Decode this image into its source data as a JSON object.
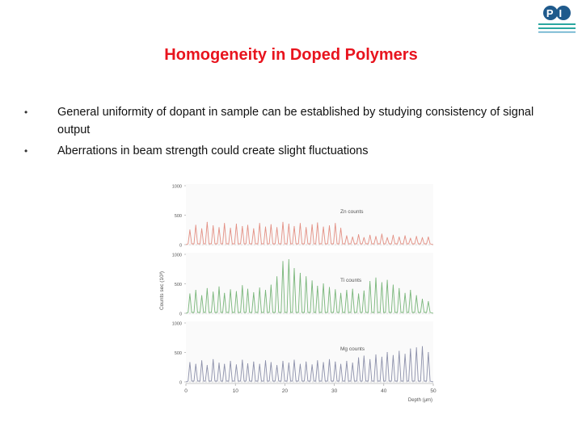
{
  "slide": {
    "title": "Homogeneity in Doped Polymers",
    "bullets": [
      "General uniformity of dopant in sample can be established by studying consistency of signal output",
      "Aberrations in beam strength could create slight fluctuations"
    ],
    "bullet_glyph": "•",
    "logo_text": "PI"
  },
  "chart_data": {
    "type": "line",
    "ylabel": "Counts sec (10³)",
    "xlabel": "Depth (µm)",
    "xlim": [
      0,
      50
    ],
    "x_ticks": [
      "0",
      "10",
      "20",
      "30",
      "40",
      "50"
    ],
    "panels": [
      {
        "name": "Zn counts",
        "color": "#e38f83",
        "ylim": [
          0,
          1000
        ],
        "y_ticks": [
          "0",
          "500",
          "1000"
        ],
        "peak_x": [
          0.8,
          2.0,
          3.2,
          4.3,
          5.5,
          6.7,
          7.8,
          9.0,
          10.2,
          11.4,
          12.5,
          13.7,
          14.9,
          16.1,
          17.2,
          18.4,
          19.6,
          20.8,
          21.9,
          23.1,
          24.3,
          25.5,
          26.6,
          27.8,
          29.0,
          30.2,
          31.3,
          32.5,
          33.7,
          34.9,
          36.0,
          37.2,
          38.4,
          39.6,
          40.7,
          41.9,
          43.1,
          44.3,
          45.4,
          46.6,
          47.8,
          49.0
        ],
        "peak_y": [
          250,
          330,
          270,
          380,
          320,
          290,
          360,
          280,
          350,
          310,
          330,
          270,
          360,
          300,
          340,
          290,
          380,
          350,
          310,
          360,
          290,
          340,
          370,
          300,
          320,
          360,
          280,
          150,
          130,
          170,
          120,
          160,
          140,
          180,
          120,
          160,
          130,
          150,
          110,
          140,
          120,
          130
        ]
      },
      {
        "name": "Ti counts",
        "color": "#79b67a",
        "ylim": [
          0,
          1000
        ],
        "y_ticks": [
          "0",
          "500",
          "1000"
        ],
        "peak_x": [
          0.8,
          2.0,
          3.2,
          4.3,
          5.5,
          6.7,
          7.8,
          9.0,
          10.2,
          11.4,
          12.5,
          13.7,
          14.9,
          16.1,
          17.2,
          18.4,
          19.6,
          20.8,
          21.9,
          23.1,
          24.3,
          25.5,
          26.6,
          27.8,
          29.0,
          30.2,
          31.3,
          32.5,
          33.7,
          34.9,
          36.0,
          37.2,
          38.4,
          39.6,
          40.7,
          41.9,
          43.1,
          44.3,
          45.4,
          46.6,
          47.8,
          49.0
        ],
        "peak_y": [
          330,
          390,
          300,
          420,
          360,
          450,
          340,
          400,
          370,
          470,
          410,
          350,
          430,
          390,
          480,
          620,
          880,
          910,
          760,
          680,
          620,
          550,
          460,
          500,
          440,
          400,
          340,
          390,
          410,
          330,
          380,
          540,
          600,
          520,
          560,
          480,
          420,
          340,
          390,
          300,
          240,
          200
        ]
      },
      {
        "name": "Mg counts",
        "color": "#8c90aa",
        "ylim": [
          0,
          1000
        ],
        "y_ticks": [
          "0",
          "500",
          "1000"
        ],
        "peak_x": [
          0.8,
          2.0,
          3.2,
          4.3,
          5.5,
          6.7,
          7.8,
          9.0,
          10.2,
          11.4,
          12.5,
          13.7,
          14.9,
          16.1,
          17.2,
          18.4,
          19.6,
          20.8,
          21.9,
          23.1,
          24.3,
          25.5,
          26.6,
          27.8,
          29.0,
          30.2,
          31.3,
          32.5,
          33.7,
          34.9,
          36.0,
          37.2,
          38.4,
          39.6,
          40.7,
          41.9,
          43.1,
          44.3,
          45.4,
          46.6,
          47.8,
          49.0
        ],
        "peak_y": [
          330,
          300,
          360,
          280,
          380,
          320,
          300,
          350,
          290,
          370,
          310,
          340,
          300,
          360,
          330,
          280,
          350,
          320,
          370,
          300,
          340,
          290,
          360,
          330,
          380,
          340,
          300,
          350,
          320,
          410,
          440,
          380,
          460,
          420,
          500,
          450,
          520,
          470,
          560,
          580,
          600,
          500
        ]
      }
    ]
  }
}
